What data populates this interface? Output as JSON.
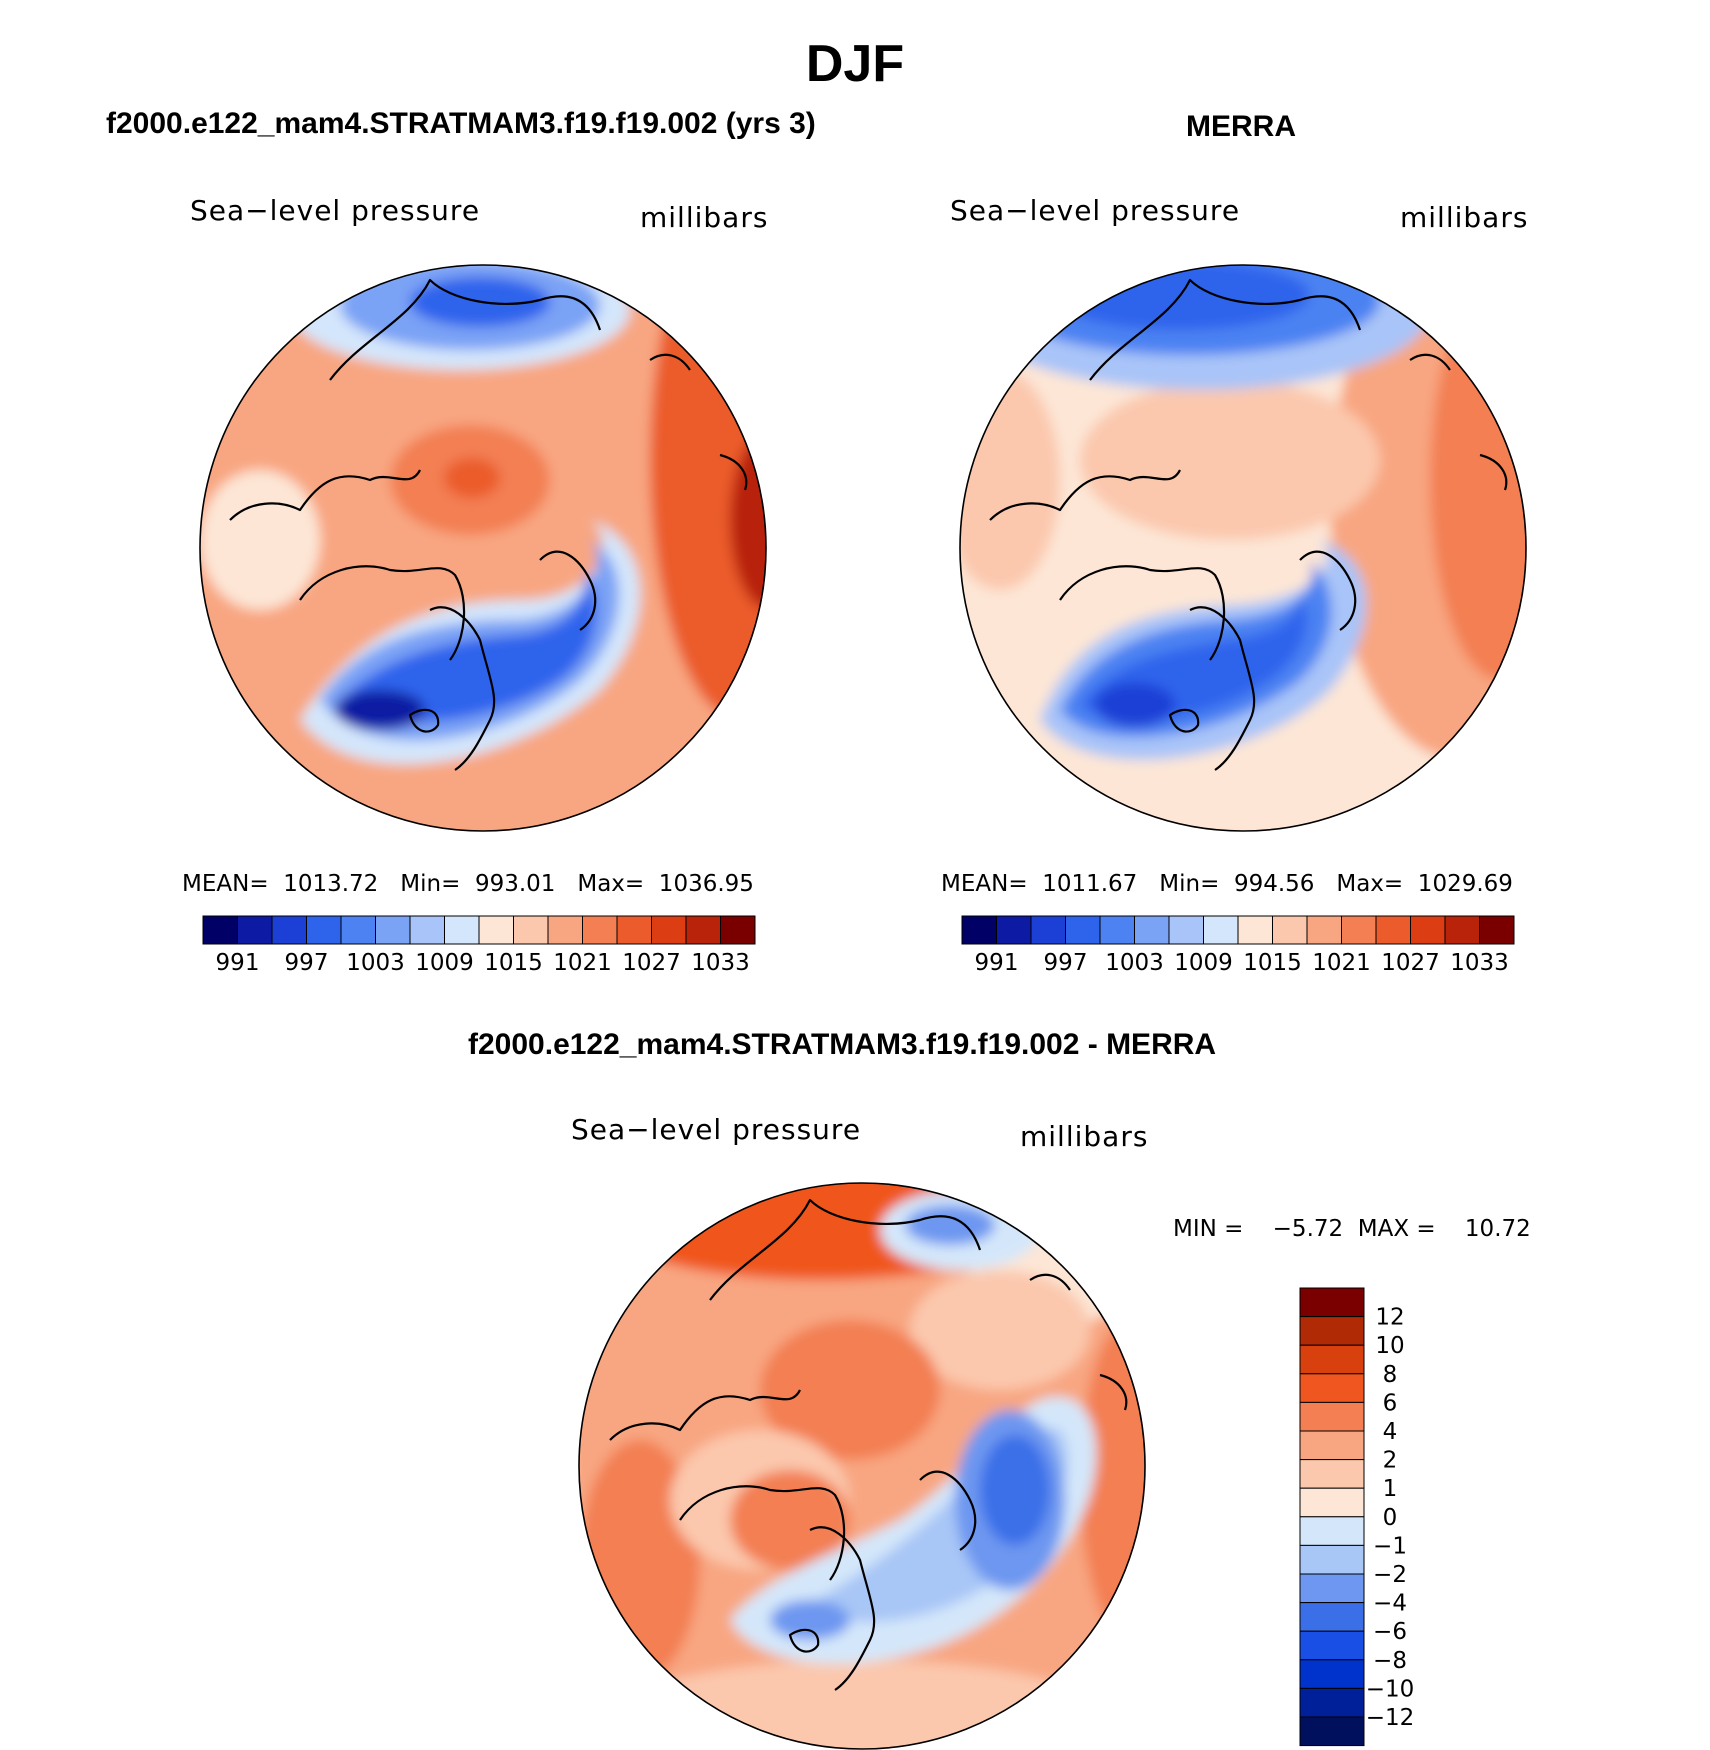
{
  "figure": {
    "title": "DJF"
  },
  "colors": {
    "abs_scale": [
      "#000066",
      "#0d1aa3",
      "#1c3fd6",
      "#2e63ec",
      "#4c82f2",
      "#7aa2f5",
      "#a9c4f8",
      "#d4e6fb",
      "#fde6d6",
      "#fbc8ad",
      "#f8a681",
      "#f37f52",
      "#eb5b2c",
      "#dc3d12",
      "#b8230a",
      "#7a0000"
    ],
    "diff_scale": [
      "#00105c",
      "#00209a",
      "#0033cc",
      "#1a4fe6",
      "#3b6fe8",
      "#6d97f0",
      "#a8c6f6",
      "#d4e7fa",
      "#fde6d6",
      "#fbc8ad",
      "#f8a681",
      "#f37f52",
      "#f0561f",
      "#d8400d",
      "#b02a05",
      "#7a0000"
    ]
  },
  "panels": [
    {
      "heading": "f2000.e122_mam4.STRATMAM3.f19.f19.002 (yrs 3)",
      "left_label": "Sea−level pressure",
      "right_label": "millibars",
      "stats": "MEAN=  1013.72   Min=  993.01   Max=  1036.95",
      "colorbar_ticks": [
        "991",
        "997",
        "1003",
        "1009",
        "1015",
        "1021",
        "1027",
        "1033"
      ]
    },
    {
      "heading": "MERRA",
      "left_label": "Sea−level pressure",
      "right_label": "millibars",
      "stats": "MEAN=  1011.67   Min=  994.56   Max=  1029.69",
      "colorbar_ticks": [
        "991",
        "997",
        "1003",
        "1009",
        "1015",
        "1021",
        "1027",
        "1033"
      ]
    },
    {
      "heading": "f2000.e122_mam4.STRATMAM3.f19.f19.002 - MERRA",
      "left_label": "Sea−level pressure",
      "right_label": "millibars",
      "stats": "MIN =    −5.72  MAX =    10.72",
      "colorbar_ticks": [
        "12",
        "10",
        "8",
        "6",
        "4",
        "2",
        "1",
        "0",
        "−1",
        "−2",
        "−4",
        "−6",
        "−8",
        "−10",
        "−12"
      ]
    }
  ],
  "chart_data": [
    {
      "type": "heatmap",
      "title": "f2000.e122_mam4.STRATMAM3.f19.f19.002 (yrs 3)",
      "variable": "Sea−level pressure",
      "units": "millibars",
      "projection": "north polar stereographic",
      "mean": 1013.72,
      "min": 993.01,
      "max": 1036.95,
      "levels": [
        991,
        994,
        997,
        1000,
        1003,
        1006,
        1009,
        1012,
        1015,
        1018,
        1021,
        1024,
        1027,
        1030,
        1033
      ]
    },
    {
      "type": "heatmap",
      "title": "MERRA",
      "variable": "Sea−level pressure",
      "units": "millibars",
      "projection": "north polar stereographic",
      "mean": 1011.67,
      "min": 994.56,
      "max": 1029.69,
      "levels": [
        991,
        994,
        997,
        1000,
        1003,
        1006,
        1009,
        1012,
        1015,
        1018,
        1021,
        1024,
        1027,
        1030,
        1033
      ]
    },
    {
      "type": "heatmap",
      "title": "f2000.e122_mam4.STRATMAM3.f19.f19.002 - MERRA",
      "variable": "Sea−level pressure",
      "units": "millibars",
      "projection": "north polar stereographic",
      "min": -5.72,
      "max": 10.72,
      "levels": [
        -12,
        -10,
        -8,
        -6,
        -4,
        -2,
        -1,
        0,
        1,
        2,
        4,
        6,
        8,
        10,
        12
      ]
    }
  ]
}
